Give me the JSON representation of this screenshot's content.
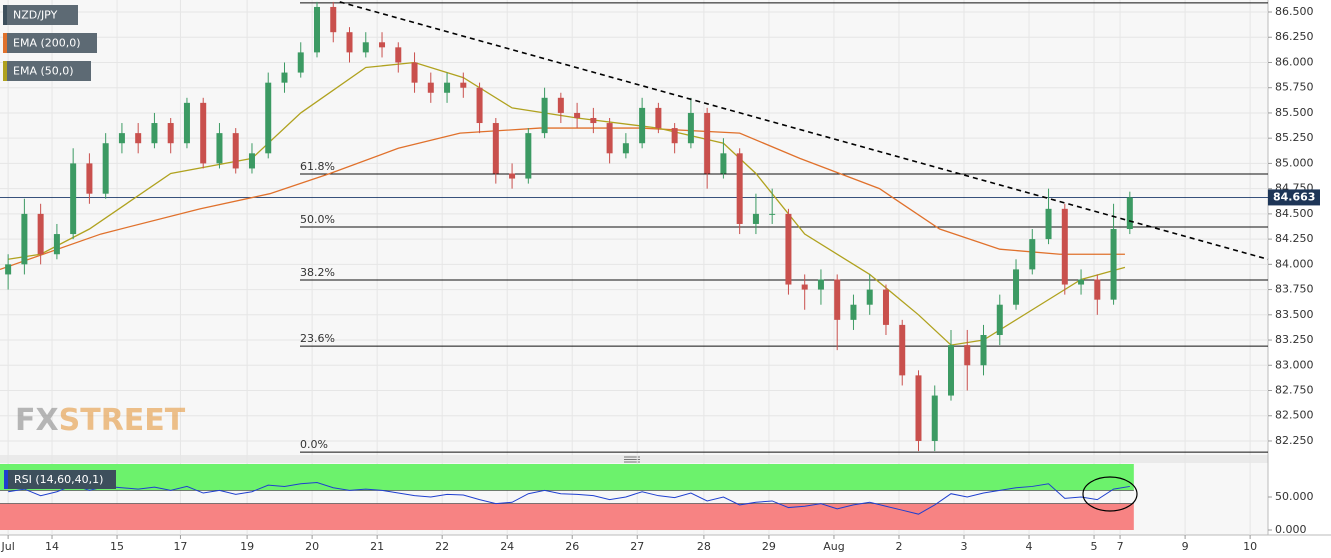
{
  "chart_data": {
    "type": "candlestick",
    "symbol": "NZD/JPY",
    "symbol_color": "#3d4f5c",
    "up_color": "#3c9a63",
    "down_color": "#c9504d",
    "ohlc": {
      "open": [
        83.9,
        84.0,
        84.5,
        84.1,
        84.3,
        85.0,
        84.7,
        85.2,
        85.3,
        85.2,
        85.4,
        85.2,
        85.6,
        85.0,
        85.3,
        84.95,
        85.1,
        85.8,
        85.9,
        86.1,
        86.55,
        86.3,
        86.1,
        86.2,
        86.15,
        86.0,
        85.8,
        85.7,
        85.8,
        85.75,
        85.4,
        84.9,
        84.85,
        85.3,
        85.65,
        85.5,
        85.45,
        85.4,
        85.1,
        85.2,
        85.55,
        85.35,
        85.2,
        85.5,
        84.9,
        85.1,
        84.4,
        84.5,
        84.5,
        83.8,
        83.75,
        83.85,
        83.45,
        83.6,
        83.75,
        83.4,
        82.9,
        82.25,
        82.7,
        83.2,
        83.0,
        83.3,
        83.6,
        83.95,
        84.25,
        84.55,
        83.8,
        83.85,
        83.65,
        84.35
      ],
      "high": [
        84.1,
        84.65,
        84.6,
        84.4,
        85.15,
        85.1,
        85.3,
        85.4,
        85.4,
        85.5,
        85.45,
        85.65,
        85.65,
        85.4,
        85.35,
        85.2,
        85.9,
        86.0,
        86.2,
        86.6,
        86.6,
        86.35,
        86.3,
        86.3,
        86.2,
        86.1,
        85.9,
        85.9,
        85.9,
        85.8,
        85.45,
        85.0,
        85.35,
        85.75,
        85.7,
        85.6,
        85.55,
        85.45,
        85.3,
        85.65,
        85.6,
        85.4,
        85.65,
        85.55,
        85.25,
        85.15,
        84.7,
        84.75,
        84.55,
        83.9,
        83.95,
        83.9,
        83.7,
        83.9,
        83.8,
        83.45,
        82.95,
        82.8,
        83.35,
        83.35,
        83.4,
        83.7,
        84.05,
        84.35,
        84.75,
        84.6,
        83.95,
        83.9,
        84.6,
        84.72
      ],
      "low": [
        83.75,
        83.9,
        84.0,
        84.05,
        84.25,
        84.6,
        84.65,
        85.1,
        85.1,
        85.15,
        85.1,
        85.15,
        84.95,
        84.95,
        84.9,
        84.9,
        85.05,
        85.7,
        85.85,
        86.05,
        86.2,
        86.0,
        86.05,
        86.05,
        85.9,
        85.7,
        85.6,
        85.6,
        85.65,
        85.3,
        84.8,
        84.75,
        84.8,
        85.25,
        85.4,
        85.35,
        85.3,
        85.0,
        85.05,
        85.15,
        85.3,
        85.1,
        85.15,
        84.75,
        84.85,
        84.3,
        84.3,
        84.4,
        83.7,
        83.55,
        83.6,
        83.15,
        83.35,
        83.5,
        83.3,
        82.8,
        82.15,
        82.15,
        82.65,
        82.75,
        82.9,
        83.2,
        83.55,
        83.9,
        84.2,
        83.7,
        83.7,
        83.5,
        83.6,
        84.3
      ],
      "close": [
        84.0,
        84.5,
        84.1,
        84.3,
        85.0,
        84.7,
        85.2,
        85.3,
        85.2,
        85.4,
        85.2,
        85.6,
        85.0,
        85.3,
        84.95,
        85.1,
        85.8,
        85.9,
        86.1,
        86.55,
        86.3,
        86.1,
        86.2,
        86.15,
        86.0,
        85.8,
        85.7,
        85.8,
        85.75,
        85.4,
        84.9,
        84.85,
        85.3,
        85.65,
        85.5,
        85.45,
        85.4,
        85.1,
        85.2,
        85.55,
        85.35,
        85.2,
        85.5,
        84.9,
        85.1,
        84.4,
        84.5,
        84.5,
        83.8,
        83.75,
        83.85,
        83.45,
        83.6,
        83.75,
        83.4,
        82.9,
        82.25,
        82.7,
        83.2,
        83.0,
        83.3,
        83.6,
        83.95,
        84.25,
        84.55,
        83.8,
        83.85,
        83.65,
        84.35,
        84.663
      ]
    },
    "overlays": [
      {
        "name": "EMA (200,0)",
        "color": "#e0712c",
        "x": [
          -0.5,
          5.7,
          11.8,
          16.1,
          19.8,
          24,
          27.8,
          32.7,
          38.9,
          45,
          48.7,
          53.6,
          57.3,
          61,
          64.7,
          68.7
        ],
        "values": [
          83.95,
          84.3,
          84.55,
          84.7,
          84.9,
          85.15,
          85.3,
          85.35,
          85.35,
          85.3,
          85.05,
          84.75,
          84.35,
          84.15,
          84.1,
          84.1
        ]
      },
      {
        "name": "EMA (50,0)",
        "color": "#b0a21f",
        "x": [
          0,
          2,
          5,
          10,
          15,
          18,
          22,
          25,
          28,
          31,
          35,
          40,
          44,
          46,
          49,
          53,
          56,
          58,
          60,
          63,
          66,
          68.7
        ],
        "values": [
          84.05,
          84.1,
          84.35,
          84.9,
          85.05,
          85.5,
          85.95,
          86.0,
          85.85,
          85.55,
          85.45,
          85.35,
          85.2,
          84.9,
          84.3,
          83.9,
          83.5,
          83.2,
          83.25,
          83.55,
          83.85,
          83.97
        ]
      }
    ],
    "trendline": {
      "x": [
        20.4,
        77.5
      ],
      "values": [
        86.6,
        84.05
      ]
    },
    "top_level": 86.59,
    "fib_levels": [
      {
        "label": "61.8%",
        "value": 84.895
      },
      {
        "label": "50.0%",
        "value": 84.37
      },
      {
        "label": "38.2%",
        "value": 83.845
      },
      {
        "label": "23.6%",
        "value": 83.19
      },
      {
        "label": "0.0%",
        "value": 82.14
      }
    ],
    "last_price": 84.663,
    "xlim": [
      -0.5,
      77.5
    ],
    "xticks": [
      {
        "value": 0,
        "label": "Jul"
      },
      {
        "value": 2.7,
        "label": "14"
      },
      {
        "value": 6.7,
        "label": "15"
      },
      {
        "value": 10.6,
        "label": "17"
      },
      {
        "value": 14.7,
        "label": "19"
      },
      {
        "value": 18.7,
        "label": "20"
      },
      {
        "value": 22.7,
        "label": "21"
      },
      {
        "value": 26.7,
        "label": "22"
      },
      {
        "value": 30.7,
        "label": "24"
      },
      {
        "value": 34.7,
        "label": "26"
      },
      {
        "value": 38.7,
        "label": "27"
      },
      {
        "value": 42.8,
        "label": "28"
      },
      {
        "value": 46.8,
        "label": "29"
      },
      {
        "value": 50.8,
        "label": "Aug"
      },
      {
        "value": 54.8,
        "label": "2"
      },
      {
        "value": 58.8,
        "label": "3"
      },
      {
        "value": 62.8,
        "label": "4"
      },
      {
        "value": 66.8,
        "label": "5"
      },
      {
        "value": 68.4,
        "label": "7"
      },
      {
        "value": 72.4,
        "label": "9"
      },
      {
        "value": 76.4,
        "label": "10"
      }
    ],
    "ylim": [
      82.111,
      86.619
    ],
    "yticks": [
      {
        "value": 86.5,
        "label": "86.500"
      },
      {
        "value": 86.25,
        "label": "86.250"
      },
      {
        "value": 86,
        "label": "86.000"
      },
      {
        "value": 85.75,
        "label": "85.750"
      },
      {
        "value": 85.5,
        "label": "85.500"
      },
      {
        "value": 85.25,
        "label": "85.250"
      },
      {
        "value": 85,
        "label": "85.000"
      },
      {
        "value": 84.75,
        "label": "84.750"
      },
      {
        "value": 84.5,
        "label": "84.500"
      },
      {
        "value": 84.25,
        "label": "84.250"
      },
      {
        "value": 84,
        "label": "84.000"
      },
      {
        "value": 83.75,
        "label": "83.750"
      },
      {
        "value": 83.5,
        "label": "83.500"
      },
      {
        "value": 83.25,
        "label": "83.250"
      },
      {
        "value": 83,
        "label": "83.000"
      },
      {
        "value": 82.75,
        "label": "82.750"
      },
      {
        "value": 82.5,
        "label": "82.500"
      },
      {
        "value": 82.25,
        "label": "82.250"
      }
    ],
    "grid": true,
    "watermark": {
      "fx": "FX",
      "street": "STREET"
    },
    "rsi": {
      "label": "RSI (14,60,40,1)",
      "color": "#1f3fcf",
      "upper": 60,
      "lower": 40,
      "upper_color": "#6cf26c",
      "lower_color": "#f78383",
      "values": [
        58,
        62,
        52,
        58,
        68,
        60,
        66,
        64,
        62,
        65,
        60,
        66,
        56,
        60,
        54,
        58,
        68,
        66,
        70,
        72,
        64,
        60,
        62,
        60,
        56,
        52,
        50,
        54,
        53,
        46,
        40,
        42,
        55,
        60,
        55,
        54,
        52,
        46,
        50,
        58,
        52,
        49,
        56,
        44,
        50,
        38,
        42,
        44,
        34,
        36,
        40,
        32,
        38,
        42,
        36,
        30,
        24,
        38,
        55,
        50,
        56,
        60,
        64,
        66,
        70,
        48,
        50,
        46,
        62,
        66
      ],
      "ylim": [
        0,
        100
      ],
      "yticks": [
        {
          "value": 50,
          "label": "50.000"
        },
        {
          "value": 0,
          "label": "0.000"
        }
      ]
    }
  }
}
